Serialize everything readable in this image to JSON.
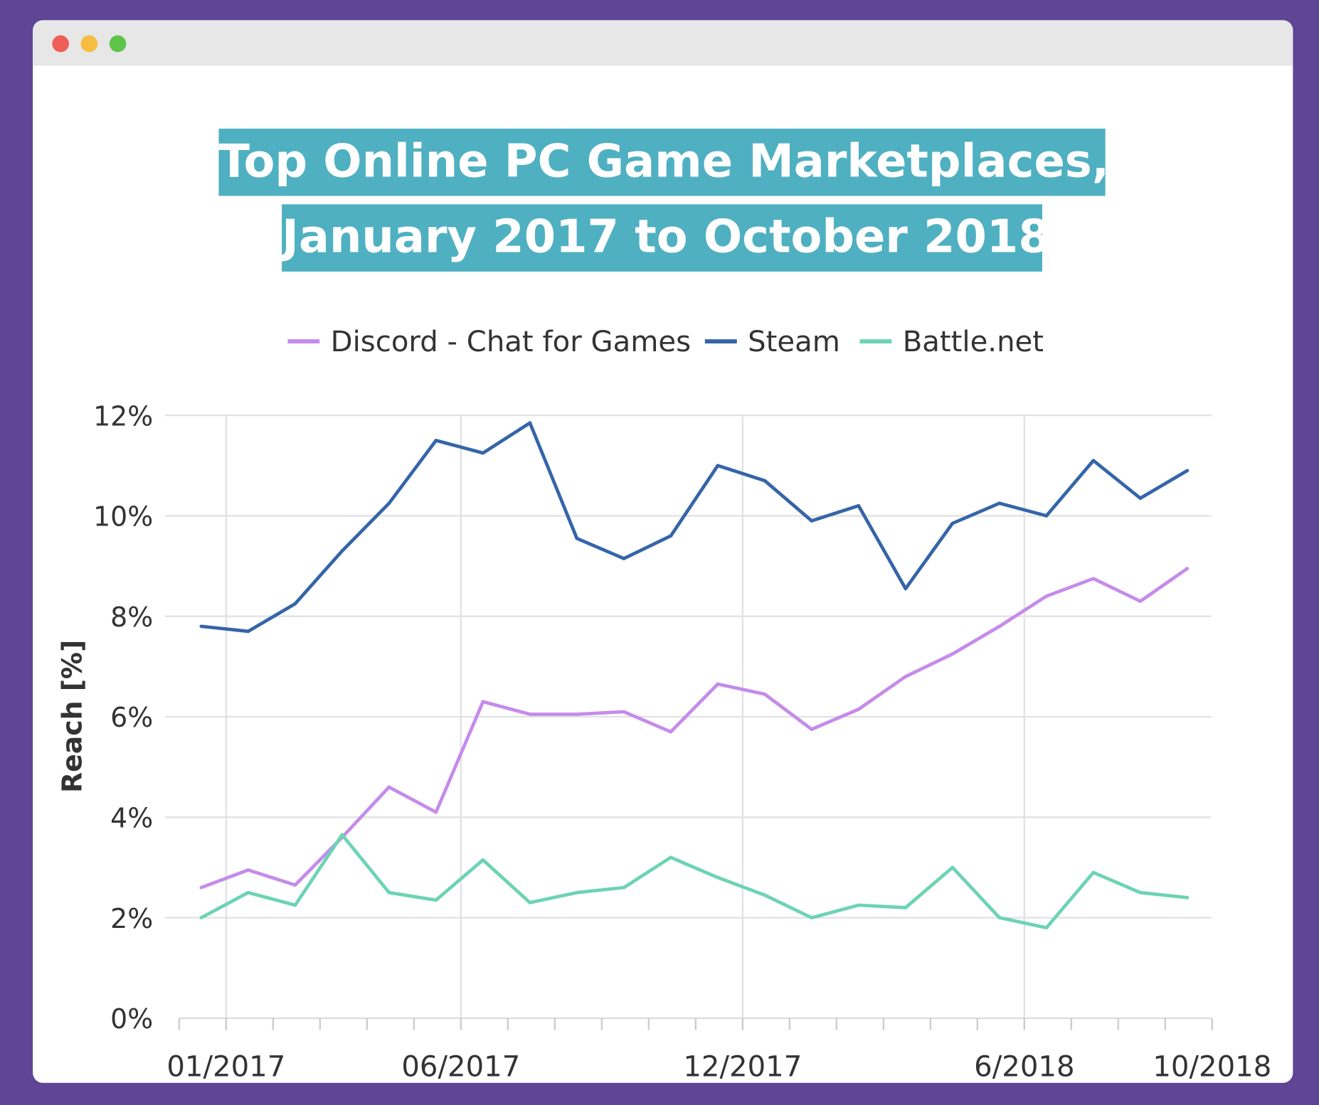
{
  "window": {
    "controls": [
      "close",
      "minimize",
      "maximize"
    ],
    "colors": {
      "frame": "#5f4595",
      "close": "#ee5f57",
      "minimize": "#f6bd41",
      "maximize": "#5ec548",
      "title_bg": "#4fb0c1"
    }
  },
  "chart_data": {
    "type": "line",
    "title_line1": "Top Online PC Game Marketplaces,",
    "title_line2": "January 2017 to October 2018",
    "ylabel": "Reach [%]",
    "xlabel": "",
    "ylim": [
      0,
      12
    ],
    "yticks": [
      "0%",
      "2%",
      "4%",
      "6%",
      "8%",
      "10%",
      "12%"
    ],
    "xtick_labels": [
      "01/2017",
      "06/2017",
      "12/2017",
      "6/2018",
      "10/2018"
    ],
    "x": [
      "01/2017",
      "02/2017",
      "03/2017",
      "04/2017",
      "05/2017",
      "06/2017",
      "07/2017",
      "08/2017",
      "09/2017",
      "10/2017",
      "11/2017",
      "12/2017",
      "01/2018",
      "02/2018",
      "03/2018",
      "04/2018",
      "05/2018",
      "06/2018",
      "07/2018",
      "08/2018",
      "09/2018",
      "10/2018"
    ],
    "grid": true,
    "legend_position": "top",
    "series": [
      {
        "name": "Discord - Chat for Games",
        "color": "#c58bea",
        "values": [
          2.6,
          2.95,
          2.65,
          3.6,
          4.6,
          4.1,
          6.3,
          6.05,
          6.05,
          6.1,
          5.7,
          6.65,
          6.45,
          5.75,
          6.15,
          6.8,
          7.25,
          7.8,
          8.4,
          8.75,
          8.3,
          8.95
        ]
      },
      {
        "name": "Steam",
        "color": "#3565a8",
        "values": [
          7.8,
          7.7,
          8.25,
          9.3,
          10.25,
          11.5,
          11.25,
          11.85,
          9.55,
          9.15,
          9.6,
          11.0,
          10.7,
          9.9,
          10.2,
          8.55,
          9.85,
          10.25,
          10.0,
          11.1,
          10.35,
          10.9
        ]
      },
      {
        "name": "Battle.net",
        "color": "#6cd3b4",
        "values": [
          2.0,
          2.5,
          2.25,
          3.65,
          2.5,
          2.35,
          3.15,
          2.3,
          2.5,
          2.6,
          3.2,
          2.8,
          2.45,
          2.0,
          2.25,
          2.2,
          3.0,
          2.0,
          1.8,
          2.9,
          2.5,
          2.4
        ]
      }
    ]
  }
}
